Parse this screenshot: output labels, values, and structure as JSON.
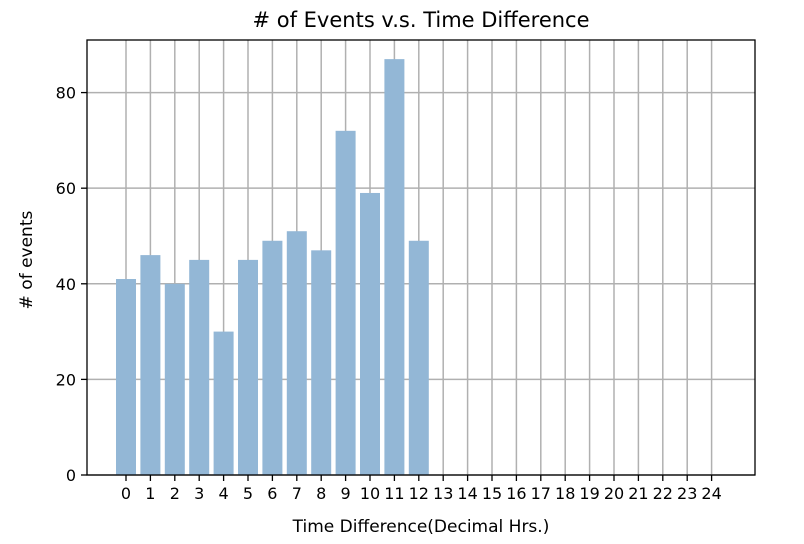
{
  "chart_data": {
    "type": "bar",
    "title": "# of Events v.s. Time Difference",
    "xlabel": "Time Difference(Decimal Hrs.)",
    "ylabel": "# of events",
    "categories": [
      "0",
      "1",
      "2",
      "3",
      "4",
      "5",
      "6",
      "7",
      "8",
      "9",
      "10",
      "11",
      "12",
      "13",
      "14",
      "15",
      "16",
      "17",
      "18",
      "19",
      "20",
      "21",
      "22",
      "23",
      "24"
    ],
    "values": [
      41,
      46,
      40,
      45,
      30,
      45,
      49,
      51,
      47,
      72,
      59,
      87,
      49,
      0,
      0,
      0,
      0,
      0,
      0,
      0,
      0,
      0,
      0,
      0,
      0
    ],
    "ylim": [
      0,
      91
    ],
    "yticks": [
      0,
      20,
      40,
      60,
      80
    ],
    "grid": true,
    "bar_color": "#93b7d6"
  }
}
